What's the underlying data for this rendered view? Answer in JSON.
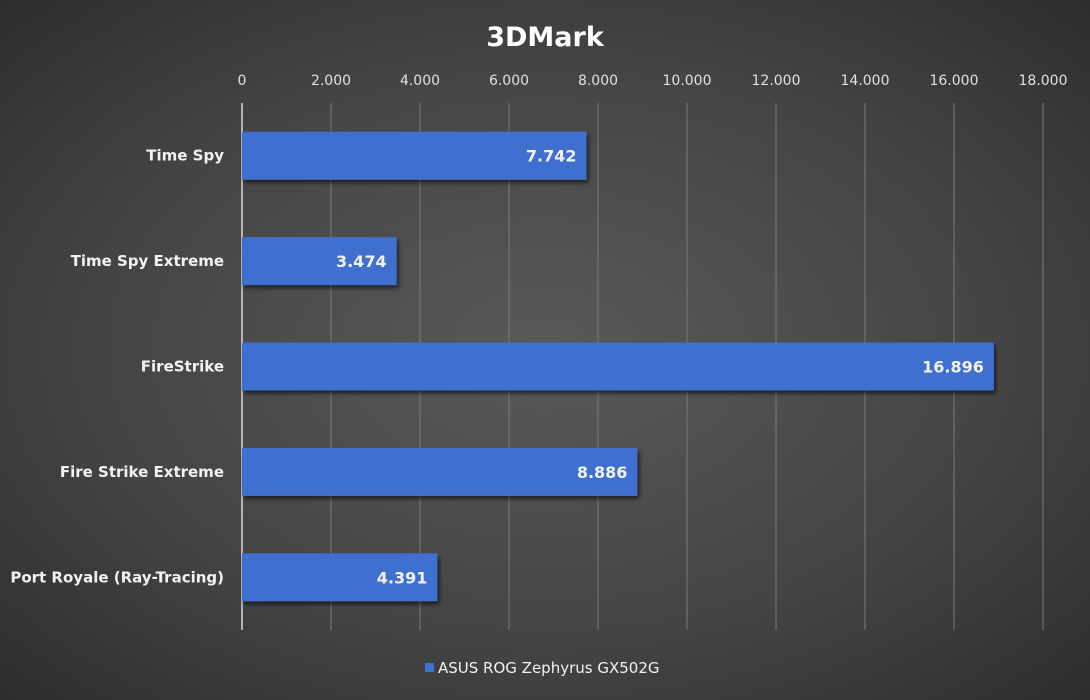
{
  "chart_data": {
    "type": "bar",
    "orientation": "horizontal",
    "title": "3DMark",
    "categories": [
      "Time Spy",
      "Time Spy Extreme",
      "FireStrike",
      "Fire Strike Extreme",
      "Port Royale (Ray-Tracing)"
    ],
    "series": [
      {
        "name": "ASUS ROG Zephyrus GX502G",
        "values": [
          7742,
          3474,
          16896,
          8886,
          4391
        ],
        "labels": [
          "7.742",
          "3.474",
          "16.896",
          "8.886",
          "4.391"
        ],
        "color": "#3f6fcf"
      }
    ],
    "xlim": [
      0,
      18000
    ],
    "xticks": [
      0,
      2000,
      4000,
      6000,
      8000,
      10000,
      12000,
      14000,
      16000,
      18000
    ],
    "xtick_labels": [
      "0",
      "2.000",
      "4.000",
      "6.000",
      "8.000",
      "10.000",
      "12.000",
      "14.000",
      "16.000",
      "18.000"
    ],
    "xlabel": "",
    "ylabel": "",
    "grid": true,
    "legend_position": "bottom"
  }
}
